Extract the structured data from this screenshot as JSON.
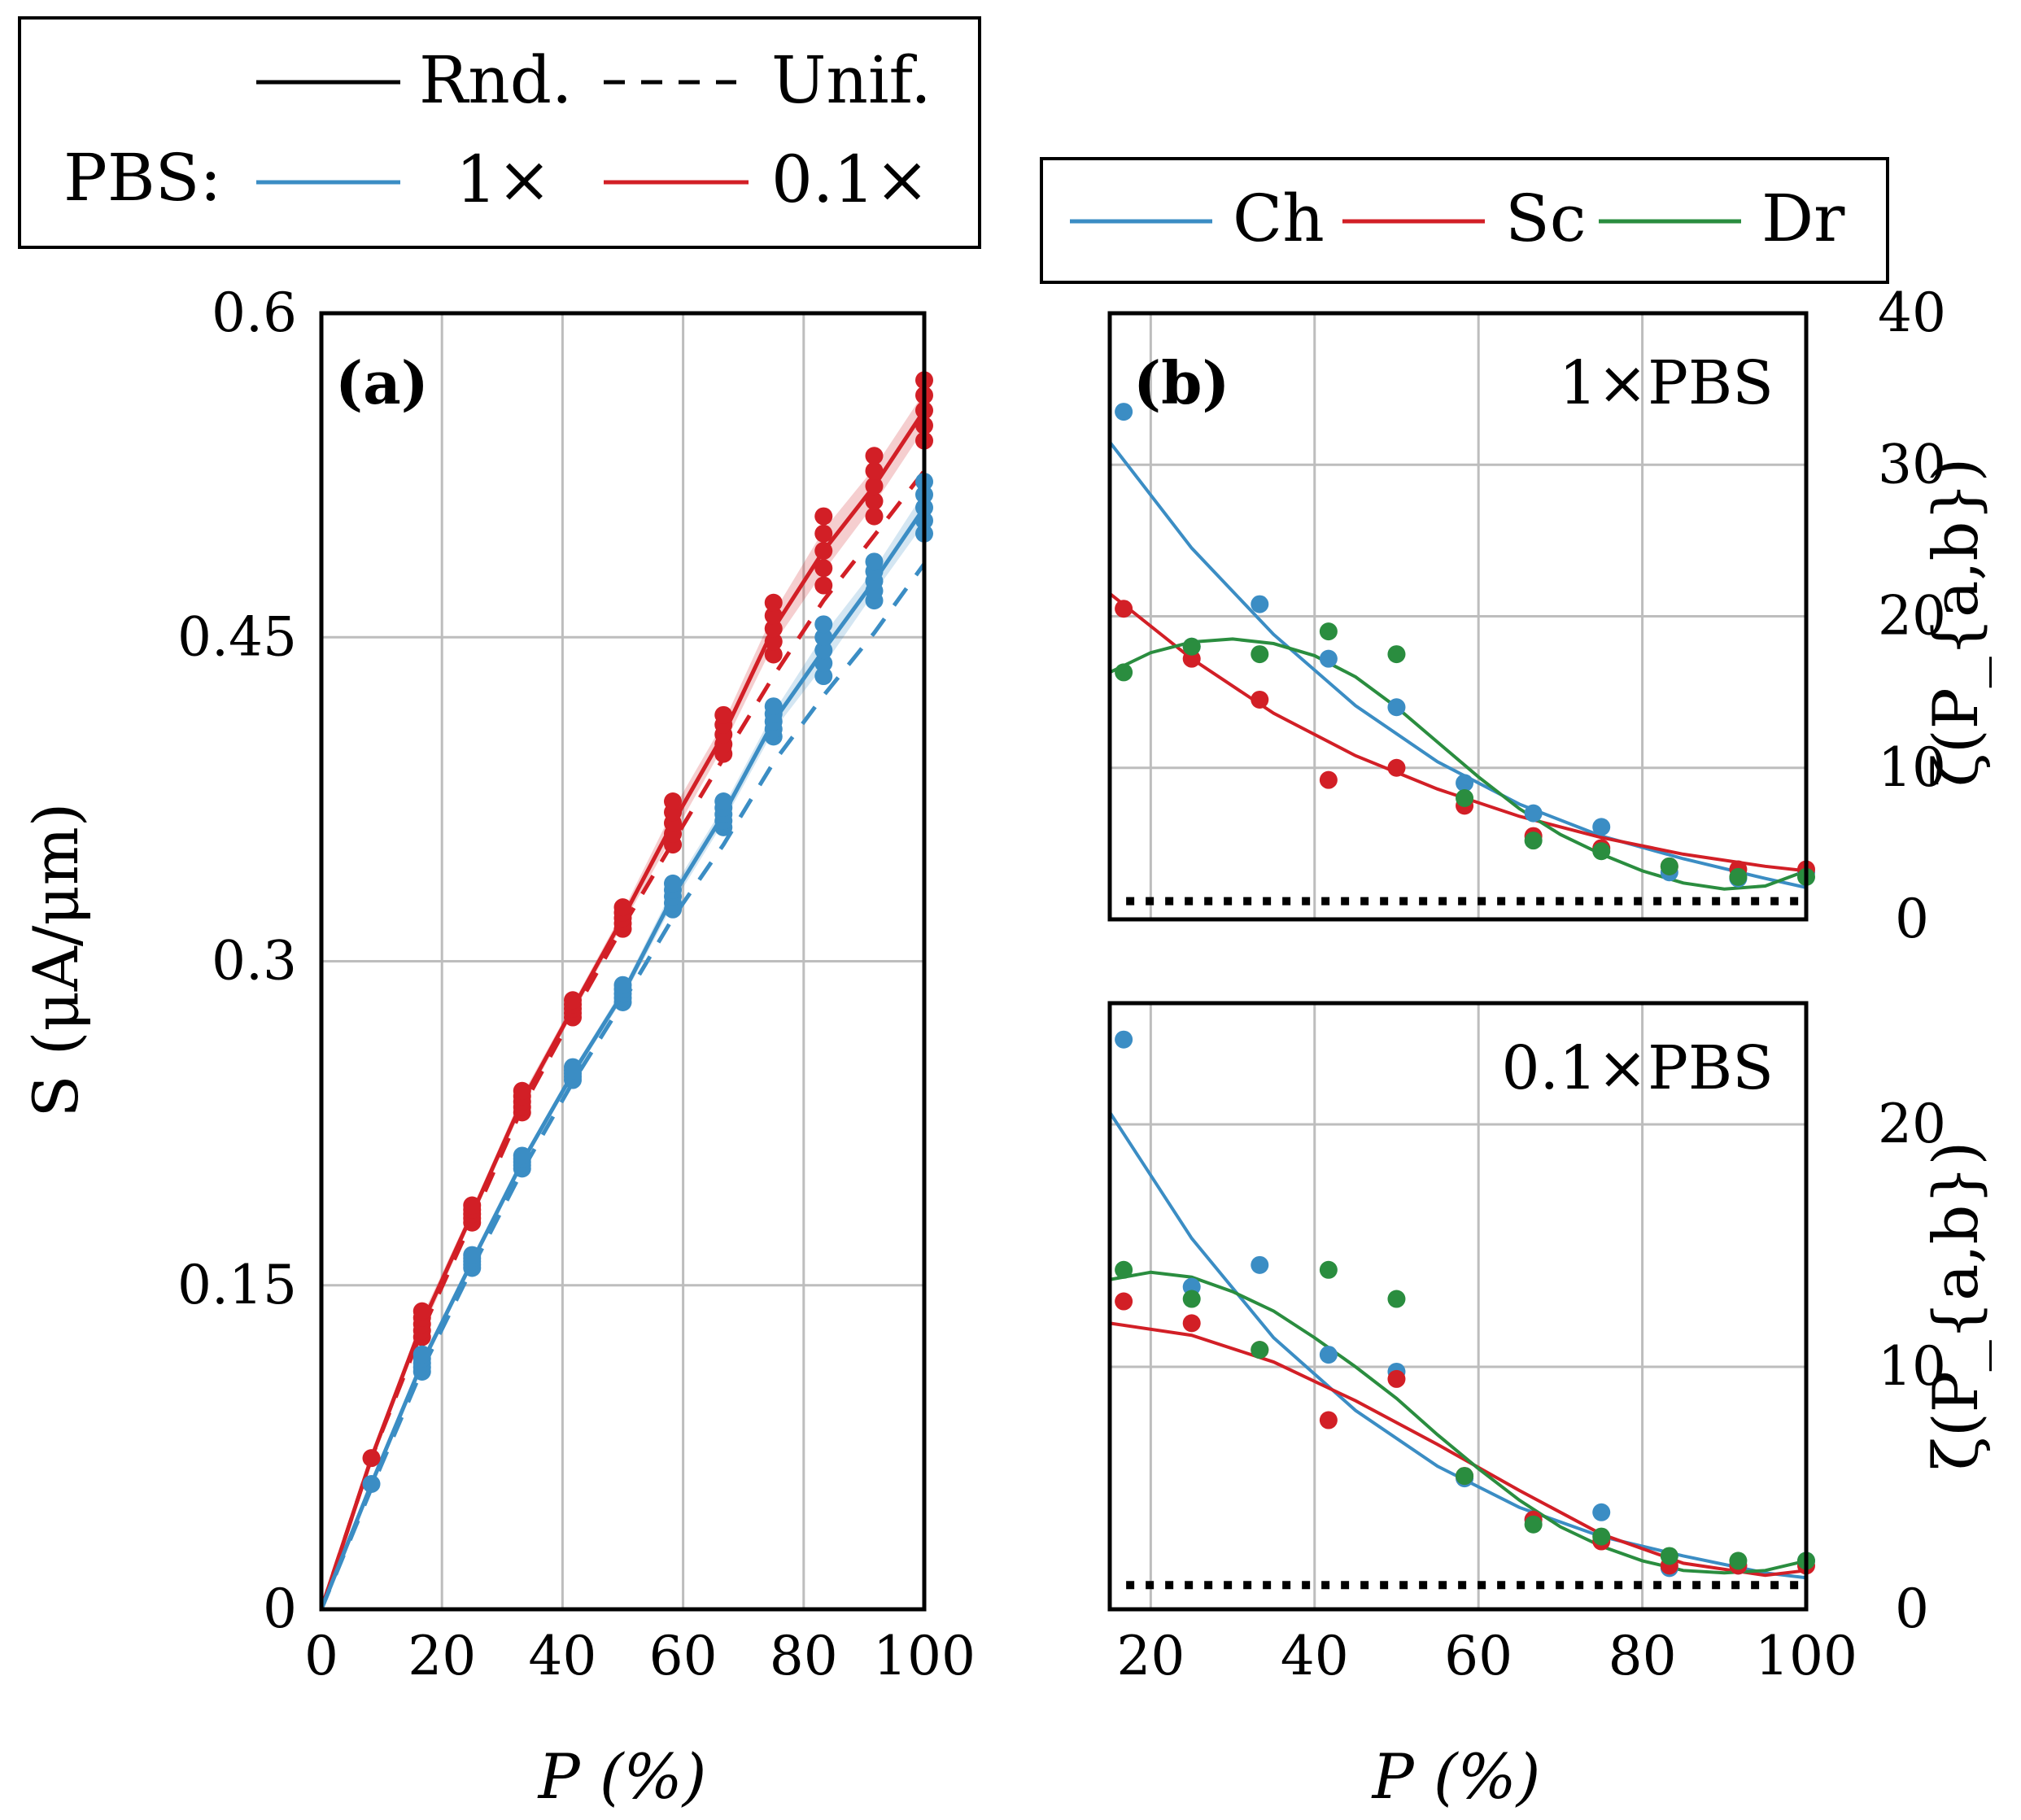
{
  "colors": {
    "blue": "#3b8dc4",
    "red": "#d21f26",
    "green": "#2a8d3f",
    "black": "#000000"
  },
  "legend_a": {
    "row1": [
      {
        "label": "Rnd.",
        "style": "solid"
      },
      {
        "label": "Unif.",
        "style": "dashed"
      }
    ],
    "pbs_label": "PBS:",
    "row2": [
      {
        "label": "1×",
        "color": "#3b8dc4"
      },
      {
        "label": "0.1×",
        "color": "#d21f26"
      }
    ]
  },
  "legend_b": [
    {
      "label": "Ch",
      "color": "#3b8dc4"
    },
    {
      "label": "Sc",
      "color": "#d21f26"
    },
    {
      "label": "Dr",
      "color": "#2a8d3f"
    }
  ],
  "chart_data": [
    {
      "id": "a",
      "type": "line",
      "panel_label": "(a)",
      "xlabel": "P (%)",
      "ylabel": "S (μA/μm)",
      "xlim": [
        0,
        100
      ],
      "ylim": [
        0,
        0.6
      ],
      "xticks": [
        0,
        20,
        40,
        60,
        80,
        100
      ],
      "yticks": [
        0,
        0.15,
        0.3,
        0.45,
        0.6
      ],
      "ytick_labels": [
        "0",
        "0.15",
        "0.3",
        "0.45",
        "0.6"
      ],
      "grid": true,
      "x": [
        0,
        8.3,
        16.7,
        25,
        33.3,
        41.7,
        50,
        58.3,
        66.7,
        75,
        83.3,
        91.7,
        100
      ],
      "series": [
        {
          "name": "0.1× Rnd.",
          "color": "red",
          "style": "solid",
          "values": [
            0,
            0.07,
            0.132,
            0.183,
            0.235,
            0.278,
            0.32,
            0.364,
            0.405,
            0.454,
            0.49,
            0.52,
            0.555
          ],
          "point_spread": [
            0,
            0,
            0.006,
            0.004,
            0.005,
            0.004,
            0.005,
            0.01,
            0.009,
            0.012,
            0.016,
            0.014,
            0.014
          ]
        },
        {
          "name": "0.1× Unif.",
          "color": "red",
          "style": "dashed",
          "values": [
            0,
            0.07,
            0.129,
            0.18,
            0.232,
            0.275,
            0.316,
            0.355,
            0.394,
            0.432,
            0.467,
            0.497,
            0.527
          ]
        },
        {
          "name": "1× Rnd.",
          "color": "blue",
          "style": "solid",
          "values": [
            0,
            0.058,
            0.114,
            0.161,
            0.207,
            0.248,
            0.285,
            0.33,
            0.368,
            0.411,
            0.444,
            0.476,
            0.51
          ],
          "point_spread": [
            0,
            0,
            0.004,
            0.003,
            0.003,
            0.003,
            0.004,
            0.006,
            0.006,
            0.007,
            0.012,
            0.009,
            0.012
          ]
        },
        {
          "name": "1× Unif.",
          "color": "blue",
          "style": "dashed",
          "values": [
            0,
            0.056,
            0.111,
            0.158,
            0.203,
            0.244,
            0.281,
            0.32,
            0.354,
            0.392,
            0.423,
            0.452,
            0.484
          ]
        }
      ]
    },
    {
      "id": "b-top",
      "type": "scatter",
      "panel_label": "(b)",
      "title": "1×PBS",
      "ylabel": "ζ(P_{a,b})",
      "xlim": [
        15,
        100
      ],
      "ylim": [
        0,
        40
      ],
      "xticks": [
        20,
        40,
        60,
        80,
        100
      ],
      "yticks": [
        0,
        10,
        20,
        30,
        40
      ],
      "ytick_labels": [
        "0",
        "10",
        "20",
        "30",
        "40"
      ],
      "grid": true,
      "reference_line": 1.2,
      "x": [
        16.7,
        25,
        33.3,
        41.7,
        50,
        58.3,
        66.7,
        75,
        83.3,
        91.7,
        100
      ],
      "series": [
        {
          "name": "Ch",
          "color": "blue",
          "points": [
            33.5,
            18.0,
            20.8,
            17.2,
            14.0,
            9.0,
            7.0,
            6.1,
            3.1,
            2.7,
            3.1
          ],
          "fit": [
            [
              15,
              31.5
            ],
            [
              25,
              24.5
            ],
            [
              35,
              18.8
            ],
            [
              45,
              14.1
            ],
            [
              55,
              10.4
            ],
            [
              65,
              7.6
            ],
            [
              75,
              5.5
            ],
            [
              85,
              4.0
            ],
            [
              95,
              2.7
            ],
            [
              100,
              2.1
            ]
          ]
        },
        {
          "name": "Sc",
          "color": "red",
          "points": [
            20.5,
            17.2,
            14.5,
            9.2,
            10.0,
            7.5,
            5.5,
            4.7,
            3.5,
            3.3,
            3.3
          ],
          "fit": [
            [
              15,
              21.5
            ],
            [
              25,
              17.2
            ],
            [
              35,
              13.6
            ],
            [
              45,
              10.8
            ],
            [
              55,
              8.6
            ],
            [
              65,
              6.8
            ],
            [
              75,
              5.4
            ],
            [
              85,
              4.3
            ],
            [
              95,
              3.5
            ],
            [
              100,
              3.2
            ]
          ]
        },
        {
          "name": "Dr",
          "color": "green",
          "points": [
            16.3,
            18.0,
            17.5,
            19.0,
            17.5,
            8.0,
            5.2,
            4.5,
            3.5,
            2.8,
            2.8
          ],
          "fit": [
            [
              15,
              16.3
            ],
            [
              20,
              17.6
            ],
            [
              25,
              18.3
            ],
            [
              30,
              18.5
            ],
            [
              35,
              18.2
            ],
            [
              40,
              17.4
            ],
            [
              45,
              16.0
            ],
            [
              50,
              14.0
            ],
            [
              55,
              11.7
            ],
            [
              60,
              9.4
            ],
            [
              65,
              7.3
            ],
            [
              70,
              5.6
            ],
            [
              75,
              4.3
            ],
            [
              80,
              3.2
            ],
            [
              85,
              2.4
            ],
            [
              90,
              2.0
            ],
            [
              95,
              2.2
            ],
            [
              100,
              3.2
            ]
          ]
        }
      ]
    },
    {
      "id": "b-bottom",
      "type": "scatter",
      "title": "0.1×PBS",
      "xlabel": "P (%)",
      "ylabel": "ζ(P_{a,b})",
      "xlim": [
        15,
        100
      ],
      "ylim": [
        0,
        25
      ],
      "xticks": [
        20,
        40,
        60,
        80,
        100
      ],
      "yticks": [
        0,
        10,
        20
      ],
      "ytick_labels": [
        "0",
        "10",
        "20"
      ],
      "grid": true,
      "reference_line": 1.0,
      "x": [
        16.7,
        25,
        33.3,
        41.7,
        50,
        58.3,
        66.7,
        75,
        83.3,
        91.7,
        100
      ],
      "series": [
        {
          "name": "Ch",
          "color": "blue",
          "points": [
            23.5,
            13.3,
            14.2,
            10.5,
            9.8,
            5.4,
            3.7,
            4.0,
            1.7,
            1.8,
            2.0
          ],
          "fit": [
            [
              15,
              20.5
            ],
            [
              25,
              15.3
            ],
            [
              35,
              11.2
            ],
            [
              45,
              8.2
            ],
            [
              55,
              5.9
            ],
            [
              65,
              4.2
            ],
            [
              75,
              3.0
            ],
            [
              85,
              2.2
            ],
            [
              95,
              1.5
            ],
            [
              100,
              1.3
            ]
          ]
        },
        {
          "name": "Sc",
          "color": "red",
          "points": [
            12.7,
            11.8,
            10.7,
            7.8,
            9.5,
            5.5,
            3.7,
            2.8,
            1.8,
            1.8,
            1.8
          ],
          "fit": [
            [
              15,
              11.8
            ],
            [
              25,
              11.3
            ],
            [
              35,
              10.2
            ],
            [
              45,
              8.6
            ],
            [
              55,
              6.8
            ],
            [
              65,
              4.9
            ],
            [
              75,
              3.1
            ],
            [
              85,
              1.9
            ],
            [
              95,
              1.4
            ],
            [
              100,
              1.6
            ]
          ]
        },
        {
          "name": "Dr",
          "color": "green",
          "points": [
            14.0,
            12.8,
            10.7,
            14.0,
            12.8,
            5.5,
            3.5,
            3.0,
            2.2,
            2.0,
            2.0
          ],
          "fit": [
            [
              15,
              13.6
            ],
            [
              20,
              13.9
            ],
            [
              25,
              13.7
            ],
            [
              30,
              13.1
            ],
            [
              35,
              12.3
            ],
            [
              40,
              11.2
            ],
            [
              45,
              10.0
            ],
            [
              50,
              8.7
            ],
            [
              55,
              7.2
            ],
            [
              60,
              5.8
            ],
            [
              65,
              4.5
            ],
            [
              70,
              3.4
            ],
            [
              75,
              2.6
            ],
            [
              80,
              2.0
            ],
            [
              85,
              1.6
            ],
            [
              90,
              1.5
            ],
            [
              95,
              1.6
            ],
            [
              100,
              2.0
            ]
          ]
        }
      ]
    }
  ]
}
